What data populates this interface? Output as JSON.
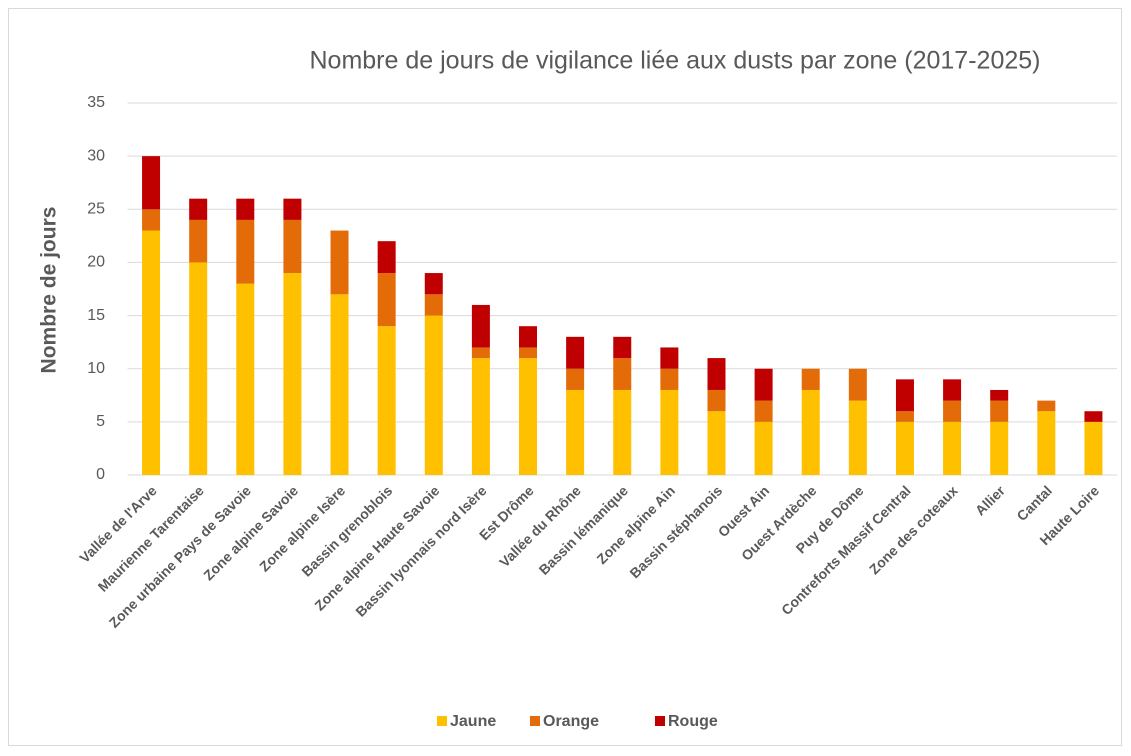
{
  "chart_data": {
    "type": "stacked_bar",
    "title": "Nombre de jours de vigilance liée aux dusts par zone (2017-2025)",
    "y_label": "Nombre de jours",
    "categories": [
      "Vallée de l'Arve",
      "Maurienne Tarentaise",
      "Zone urbaine Pays de Savoie",
      "Zone alpine Savoie",
      "Zone alpine Isère",
      "Bassin grenoblois",
      "Zone alpine Haute Savoie",
      "Bassin lyonnais nord Isère",
      "Est Drôme",
      "Vallée du Rhône",
      "Bassin lémanique",
      "Zone alpine Ain",
      "Bassin stéphanois",
      "Ouest Ain",
      "Ouest Ardèche",
      "Puy de Dôme",
      "Contreforts Massif Central",
      "Zone des coteaux",
      "Allier",
      "Cantal",
      "Haute Loire"
    ],
    "series": [
      {
        "name": "Jaune",
        "color": "#ffc000",
        "values": [
          23,
          20,
          18,
          19,
          17,
          14,
          15,
          11,
          11,
          8,
          8,
          8,
          6,
          5,
          8,
          7,
          5,
          5,
          5,
          6,
          5
        ]
      },
      {
        "name": "Orange",
        "color": "#e36c09",
        "values": [
          2,
          4,
          6,
          5,
          6,
          5,
          2,
          1,
          1,
          2,
          3,
          2,
          2,
          2,
          2,
          3,
          1,
          2,
          2,
          1,
          0
        ]
      },
      {
        "name": "Rouge",
        "color": "#c00000",
        "values": [
          5,
          2,
          2,
          2,
          0,
          3,
          2,
          4,
          2,
          3,
          2,
          2,
          3,
          3,
          0,
          0,
          3,
          2,
          1,
          0,
          1
        ]
      }
    ],
    "ylim": [
      0,
      35
    ],
    "yticks": [
      0,
      5,
      10,
      15,
      20,
      25,
      30,
      35
    ],
    "grid": true,
    "legend": "bottom"
  }
}
